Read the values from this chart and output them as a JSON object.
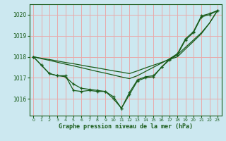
{
  "xlabel": "Graphe pression niveau de la mer (hPa)",
  "background_color": "#cce8f0",
  "grid_color": "#e8aaaa",
  "line_color": "#1a5c1a",
  "xlim": [
    -0.5,
    23.5
  ],
  "ylim": [
    1015.2,
    1020.5
  ],
  "yticks": [
    1016,
    1017,
    1018,
    1019,
    1020
  ],
  "xticks": [
    0,
    1,
    2,
    3,
    4,
    5,
    6,
    7,
    8,
    9,
    10,
    11,
    12,
    13,
    14,
    15,
    16,
    17,
    18,
    19,
    20,
    21,
    22,
    23
  ],
  "series_curved": [
    [
      1018.0,
      1017.6,
      1017.2,
      1017.1,
      1017.1,
      1016.4,
      1016.35,
      1016.4,
      1016.35,
      1016.35,
      1016.0,
      1015.55,
      1016.3,
      1016.9,
      1017.05,
      1017.1,
      1017.5,
      1017.9,
      1018.15,
      1018.85,
      1019.2,
      1019.95,
      1020.05,
      1020.2
    ],
    [
      1018.0,
      1017.6,
      1017.2,
      1017.1,
      1017.05,
      1016.7,
      1016.5,
      1016.45,
      1016.4,
      1016.35,
      1016.1,
      1015.55,
      1016.2,
      1016.85,
      1017.0,
      1017.05,
      1017.5,
      1017.85,
      1018.1,
      1018.8,
      1019.15,
      1019.9,
      1020.0,
      1020.2
    ]
  ],
  "series_straight": [
    [
      1018.0,
      1017.93,
      1017.87,
      1017.8,
      1017.73,
      1017.67,
      1017.6,
      1017.53,
      1017.47,
      1017.4,
      1017.33,
      1017.27,
      1017.2,
      1017.33,
      1017.47,
      1017.6,
      1017.73,
      1017.87,
      1018.0,
      1018.37,
      1018.73,
      1019.1,
      1019.6,
      1020.2
    ],
    [
      1018.0,
      1017.91,
      1017.83,
      1017.74,
      1017.65,
      1017.57,
      1017.48,
      1017.39,
      1017.3,
      1017.22,
      1017.13,
      1017.04,
      1016.96,
      1017.1,
      1017.3,
      1017.5,
      1017.7,
      1017.9,
      1018.1,
      1018.45,
      1018.8,
      1019.15,
      1019.6,
      1020.2
    ]
  ]
}
